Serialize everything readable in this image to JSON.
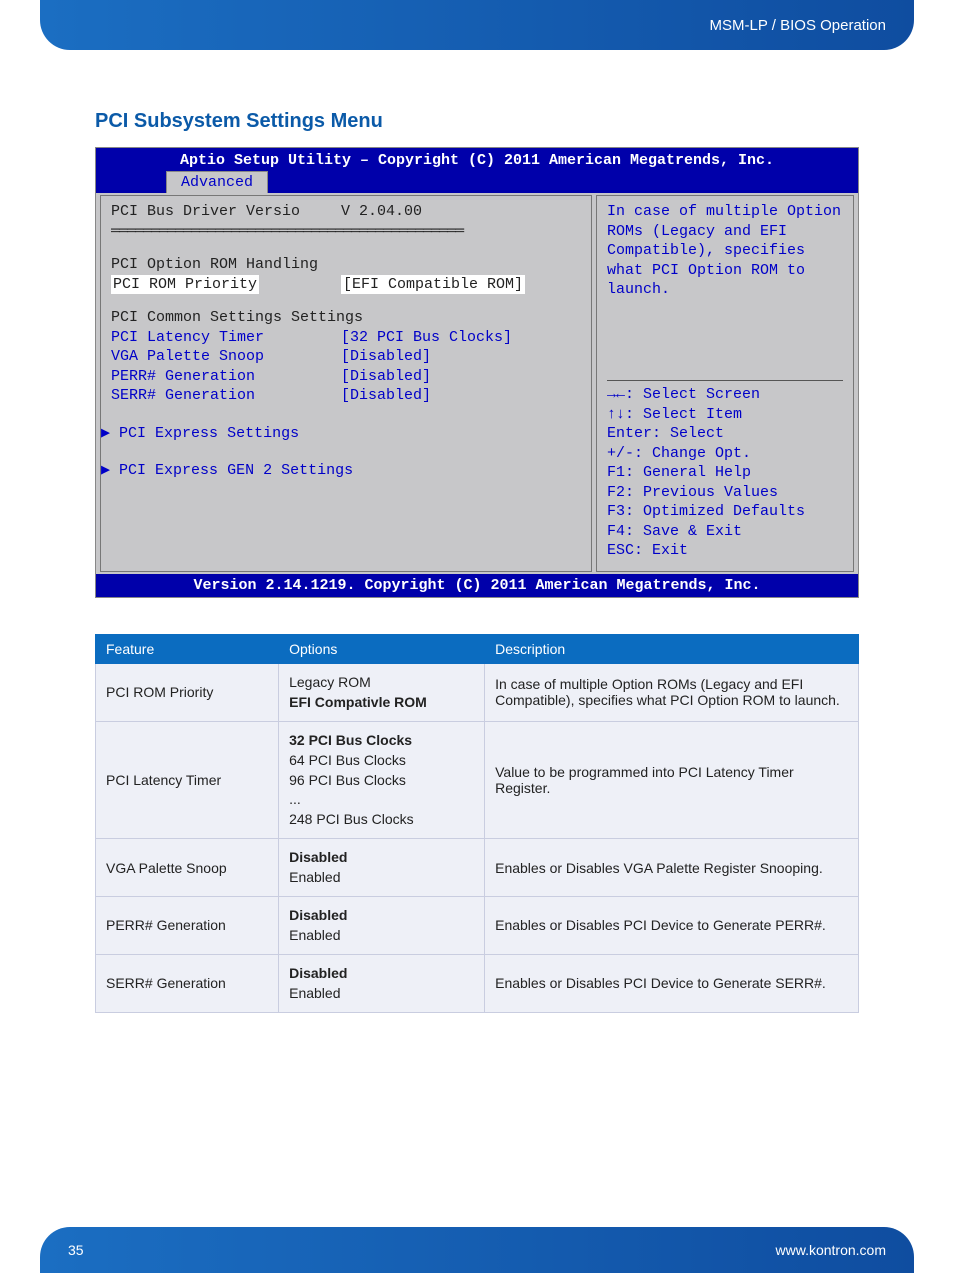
{
  "header": {
    "breadcrumb": "MSM-LP / BIOS Operation"
  },
  "footer": {
    "page": "35",
    "url": "www.kontron.com"
  },
  "section_title": "PCI Subsystem Settings Menu",
  "bios": {
    "titlebar": "Aptio Setup Utility – Copyright (C) 2011 American Megatrends, Inc.",
    "tab": "Advanced",
    "left": {
      "version_label": "PCI Bus Driver Versio",
      "version_value": "V 2.04.00",
      "group1": "PCI Option ROM Handling",
      "rom_priority_label": "PCI ROM Priority",
      "rom_priority_value": "[EFI Compatible ROM]",
      "group2": "PCI Common Settings Settings",
      "latency_label": "PCI Latency Timer",
      "latency_value": "[32 PCI Bus Clocks]",
      "vga_label": "VGA Palette Snoop",
      "vga_value": "[Disabled]",
      "perr_label": "PERR# Generation",
      "perr_value": "[Disabled]",
      "serr_label": "SERR# Generation",
      "serr_value": "[Disabled]",
      "sub1": "PCI Express Settings",
      "sub2": "PCI Express GEN 2 Settings"
    },
    "help_text": "In case of multiple Option ROMs (Legacy and EFI Compatible), specifies what PCI Option ROM to launch.",
    "keyhelp": {
      "l1": "→←: Select Screen",
      "l2": "↑↓: Select Item",
      "l3": "Enter: Select",
      "l4": "+/-: Change Opt.",
      "l5": "F1: General Help",
      "l6": "F2: Previous Values",
      "l7": "F3: Optimized Defaults",
      "l8": "F4: Save & Exit",
      "l9": "ESC: Exit"
    },
    "footer": "Version 2.14.1219. Copyright (C) 2011 American Megatrends, Inc."
  },
  "table": {
    "columns": [
      "Feature",
      "Options",
      "Description"
    ],
    "col_widths": [
      "24%",
      "27%",
      "49%"
    ],
    "rows": [
      {
        "feature": "PCI ROM Priority",
        "options": [
          {
            "text": "Legacy ROM",
            "bold": false
          },
          {
            "text": "EFI Compativle ROM",
            "bold": true
          }
        ],
        "description": "In case of multiple Option ROMs (Legacy and EFI Compatible), specifies what PCI Option ROM to launch."
      },
      {
        "feature": "PCI Latency Timer",
        "options": [
          {
            "text": "32 PCI Bus Clocks",
            "bold": true
          },
          {
            "text": "64 PCI Bus Clocks",
            "bold": false
          },
          {
            "text": "96 PCI Bus Clocks",
            "bold": false
          },
          {
            "text": "...",
            "bold": false
          },
          {
            "text": "248 PCI Bus Clocks",
            "bold": false
          }
        ],
        "description": "Value to be programmed into PCI Latency Timer Register."
      },
      {
        "feature": "VGA Palette Snoop",
        "options": [
          {
            "text": "Disabled",
            "bold": true
          },
          {
            "text": "Enabled",
            "bold": false
          }
        ],
        "description": "Enables or Disables VGA Palette Register Snooping."
      },
      {
        "feature": "PERR# Generation",
        "options": [
          {
            "text": "Disabled",
            "bold": true
          },
          {
            "text": "Enabled",
            "bold": false
          }
        ],
        "description": "Enables or Disables PCI Device to Generate PERR#."
      },
      {
        "feature": "SERR# Generation",
        "options": [
          {
            "text": "Disabled",
            "bold": true
          },
          {
            "text": "Enabled",
            "bold": false
          }
        ],
        "description": "Enables or Disables PCI Device to Generate SERR#."
      }
    ]
  }
}
